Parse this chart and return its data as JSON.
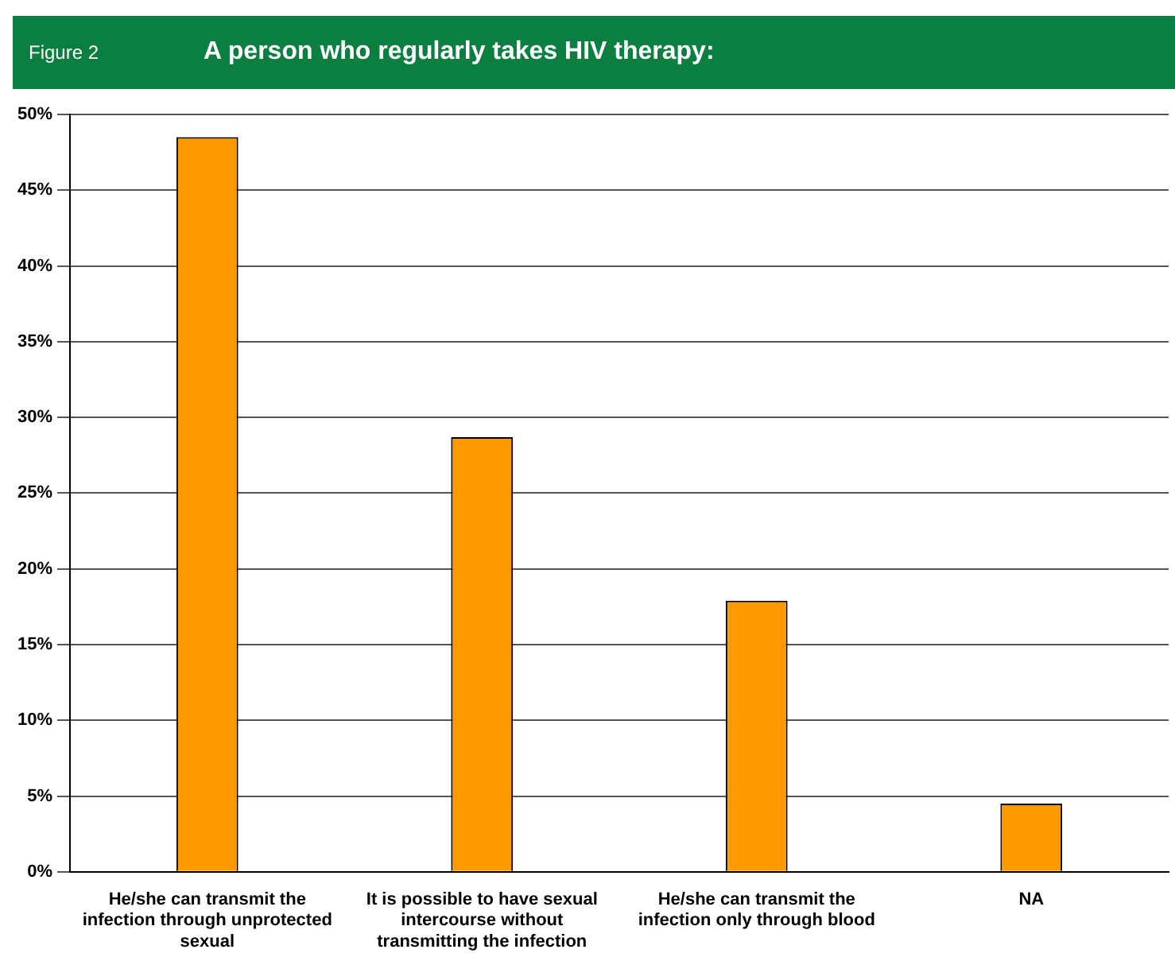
{
  "chart_data": {
    "type": "bar",
    "title": "A person who regularly takes HIV therapy:",
    "annotations": [
      "Figure 2"
    ],
    "categories": [
      "He/she can transmit the infection through unprotected sexual",
      "It is possible to have sexual intercourse without transmitting the infection",
      "He/she can transmit the infection only through blood",
      "NA"
    ],
    "values": [
      48.5,
      28.7,
      17.9,
      4.5
    ],
    "color": "#ff9900",
    "ylim": [
      0,
      50
    ],
    "yticks": [
      {
        "value": 0,
        "label": "0%"
      },
      {
        "value": 5,
        "label": "5%"
      },
      {
        "value": 10,
        "label": "10%"
      },
      {
        "value": 15,
        "label": "15%"
      },
      {
        "value": 20,
        "label": "20%"
      },
      {
        "value": 25,
        "label": "25%"
      },
      {
        "value": 30,
        "label": "30%"
      },
      {
        "value": 35,
        "label": "35%"
      },
      {
        "value": 40,
        "label": "40%"
      },
      {
        "value": 45,
        "label": "45%"
      },
      {
        "value": 50,
        "label": "50%"
      }
    ],
    "grid": "y",
    "legend": false
  }
}
